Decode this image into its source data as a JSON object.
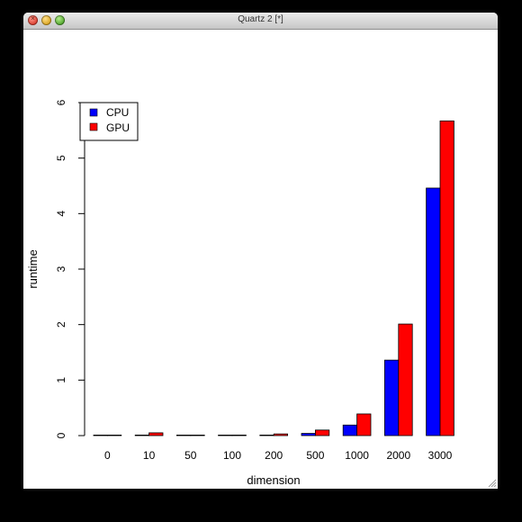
{
  "window": {
    "title": "Quartz 2 [*]"
  },
  "chart_data": {
    "type": "bar",
    "categories": [
      "0",
      "10",
      "50",
      "100",
      "200",
      "500",
      "1000",
      "2000",
      "3000"
    ],
    "series": [
      {
        "name": "CPU",
        "color": "#0000ff",
        "values": [
          0.0,
          0.01,
          0.0,
          0.0,
          0.01,
          0.04,
          0.19,
          1.36,
          4.46
        ]
      },
      {
        "name": "GPU",
        "color": "#ff0000",
        "values": [
          0.0,
          0.05,
          0.0,
          0.01,
          0.03,
          0.1,
          0.39,
          2.01,
          5.67
        ]
      }
    ],
    "title": "",
    "xlabel": "dimension",
    "ylabel": "runtime",
    "ylim": [
      0,
      6
    ],
    "yticks": [
      "0",
      "1",
      "2",
      "3",
      "4",
      "5",
      "6"
    ],
    "grid": false,
    "legend": "top-left"
  }
}
